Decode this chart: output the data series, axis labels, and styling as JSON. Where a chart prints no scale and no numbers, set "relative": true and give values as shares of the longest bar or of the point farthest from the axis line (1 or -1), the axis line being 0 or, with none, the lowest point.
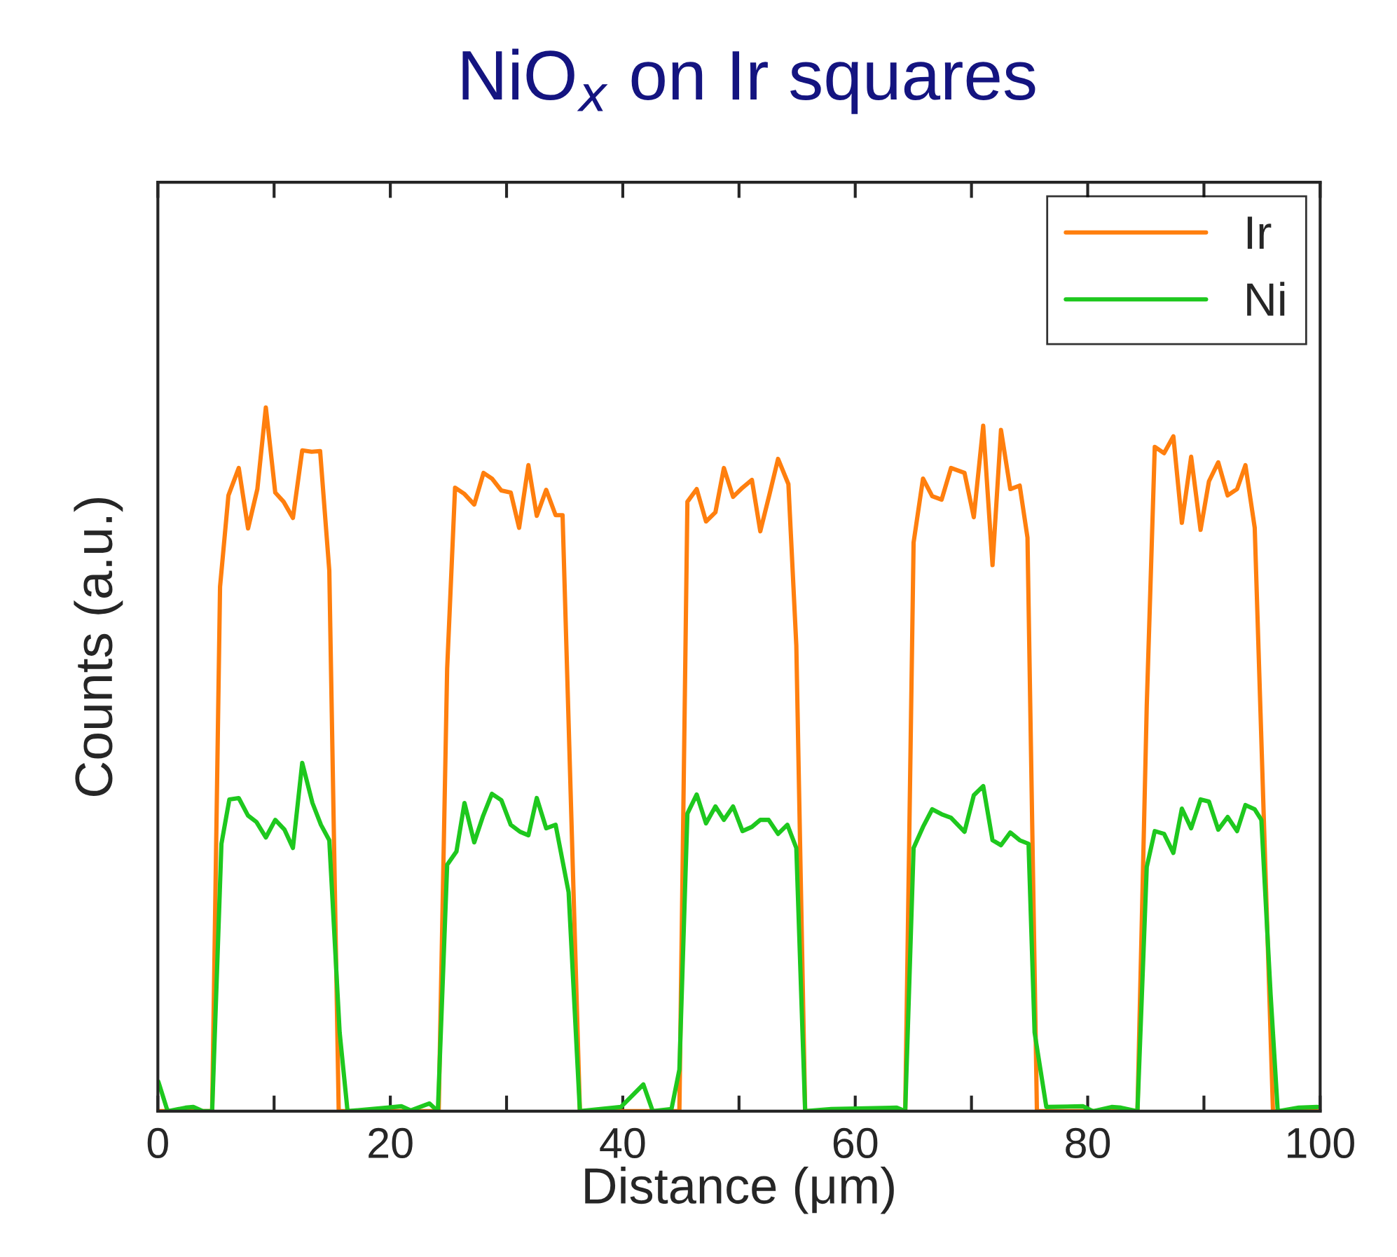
{
  "chart_data": {
    "type": "line",
    "title": "NiO$_{x}$ on Ir squares",
    "xlabel": "Distance (μm)",
    "ylabel": "Counts (a.u.)",
    "relative": true,
    "xlim": [
      0,
      100
    ],
    "xticks": [
      0,
      {
        "value": 10,
        "label": null
      },
      20,
      {
        "value": 30,
        "label": null
      },
      40,
      {
        "value": 50,
        "label": null
      },
      60,
      {
        "value": 70,
        "label": null
      },
      80,
      {
        "value": 90,
        "label": null
      },
      100
    ],
    "legend": "top right",
    "grid": false,
    "marker": "none",
    "line_style": "solid",
    "series": [
      {
        "name": "Ir",
        "color": "#ff7f0e",
        "x": [
          0,
          4.67,
          5.35,
          6.07,
          6.96,
          7.76,
          8.56,
          9.29,
          10.1,
          10.82,
          11.62,
          12.42,
          13.23,
          13.96,
          14.75,
          15.56,
          24.16,
          24.89,
          25.57,
          26.38,
          27.22,
          28.02,
          28.74,
          29.55,
          30.36,
          31.08,
          31.88,
          32.6,
          33.41,
          34.22,
          34.82,
          36.31,
          44.87,
          45.56,
          46.36,
          47.16,
          47.97,
          48.7,
          49.49,
          50.3,
          51.11,
          51.83,
          52.63,
          53.36,
          54.25,
          54.93,
          55.69,
          64.3,
          65.02,
          65.83,
          66.62,
          67.43,
          68.24,
          69.4,
          70.2,
          71.01,
          71.81,
          72.54,
          73.34,
          74.15,
          74.82,
          75.63,
          84.28,
          85.08,
          85.77,
          86.57,
          87.37,
          88.1,
          88.9,
          89.71,
          90.43,
          91.23,
          92.04,
          92.85,
          93.57,
          94.37,
          95.94,
          100
        ],
        "values": [
          0,
          0,
          0.745,
          0.875,
          0.914,
          0.828,
          0.884,
          1.0,
          0.879,
          0.866,
          0.843,
          0.939,
          0.937,
          0.938,
          0.768,
          0,
          0,
          0.629,
          0.886,
          0.877,
          0.862,
          0.907,
          0.899,
          0.882,
          0.879,
          0.829,
          0.918,
          0.846,
          0.883,
          0.847,
          0.847,
          0,
          0,
          0.866,
          0.884,
          0.838,
          0.851,
          0.914,
          0.873,
          0.886,
          0.897,
          0.824,
          0.877,
          0.927,
          0.891,
          0.662,
          0,
          0,
          0.808,
          0.899,
          0.874,
          0.869,
          0.914,
          0.907,
          0.844,
          0.974,
          0.776,
          0.968,
          0.884,
          0.889,
          0.815,
          0,
          0,
          0.576,
          0.944,
          0.935,
          0.959,
          0.836,
          0.93,
          0.826,
          0.895,
          0.922,
          0.875,
          0.884,
          0.918,
          0.829,
          0,
          0
        ]
      },
      {
        "name": "Ni",
        "color": "#1ec81e",
        "x": [
          0.04,
          0.84,
          2.38,
          3.05,
          3.86,
          4.67,
          5.47,
          6.15,
          6.96,
          7.76,
          8.48,
          9.29,
          10.1,
          10.9,
          11.62,
          12.42,
          13.3,
          14.03,
          14.75,
          15.64,
          16.32,
          19.74,
          20.95,
          21.75,
          23.36,
          24.09,
          24.89,
          25.69,
          26.38,
          27.22,
          27.99,
          28.74,
          29.55,
          30.36,
          31.16,
          31.88,
          32.6,
          33.41,
          34.22,
          35.34,
          36.31,
          39.84,
          41.77,
          42.58,
          44.19,
          44.87,
          45.56,
          46.36,
          47.16,
          47.97,
          48.7,
          49.49,
          50.3,
          51.11,
          51.83,
          52.55,
          53.36,
          54.16,
          54.93,
          55.69,
          57.94,
          63.57,
          64.3,
          65.02,
          65.83,
          66.62,
          67.43,
          68.24,
          69.4,
          70.2,
          71.01,
          71.81,
          72.54,
          73.34,
          74.15,
          74.91,
          75.43,
          76.44,
          79.58,
          80.46,
          82.06,
          82.87,
          84.28,
          85.08,
          85.77,
          86.57,
          87.37,
          88.1,
          88.9,
          89.71,
          90.43,
          91.23,
          92.04,
          92.85,
          93.57,
          94.37,
          94.94,
          95.74,
          96.35,
          98.16,
          99.76
        ],
        "values": [
          0.042,
          0,
          0.005,
          0.006,
          0,
          0,
          0.38,
          0.443,
          0.445,
          0.42,
          0.411,
          0.389,
          0.414,
          0.4,
          0.374,
          0.495,
          0.438,
          0.407,
          0.385,
          0.112,
          0,
          0.005,
          0.007,
          0.001,
          0.011,
          0,
          0.35,
          0.369,
          0.438,
          0.382,
          0.42,
          0.451,
          0.442,
          0.407,
          0.397,
          0.392,
          0.445,
          0.402,
          0.407,
          0.311,
          0,
          0.006,
          0.038,
          0,
          0.003,
          0.059,
          0.423,
          0.45,
          0.409,
          0.433,
          0.414,
          0.433,
          0.398,
          0.404,
          0.414,
          0.414,
          0.394,
          0.407,
          0.374,
          0,
          0.003,
          0.005,
          0,
          0.374,
          0.404,
          0.429,
          0.422,
          0.417,
          0.397,
          0.449,
          0.462,
          0.385,
          0.378,
          0.396,
          0.385,
          0.38,
          0.112,
          0.006,
          0.007,
          0,
          0.006,
          0.005,
          0,
          0.347,
          0.398,
          0.394,
          0.367,
          0.43,
          0.402,
          0.443,
          0.44,
          0.4,
          0.418,
          0.398,
          0.435,
          0.429,
          0.414,
          0.165,
          0,
          0.005,
          0.006
        ]
      }
    ]
  }
}
